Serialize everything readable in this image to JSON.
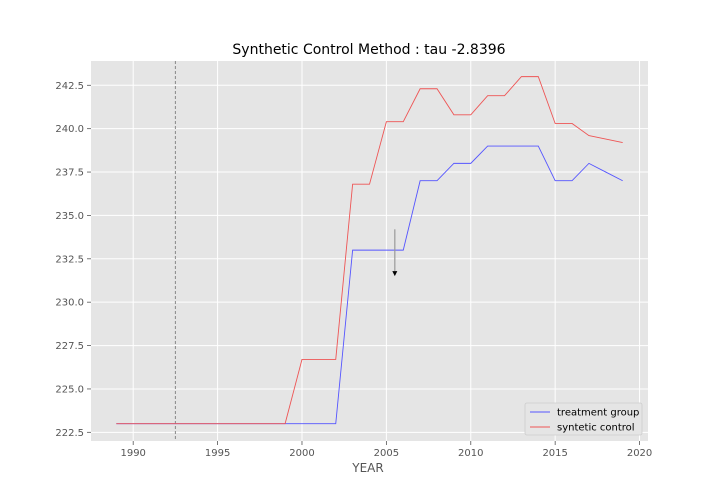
{
  "chart_data": {
    "type": "line",
    "title": "Synthetic Control Method : tau -2.8396",
    "xlabel": "YEAR",
    "ylabel": "",
    "xlim": [
      1987.5,
      2020.5
    ],
    "ylim": [
      222.0,
      243.9
    ],
    "x_ticks": [
      1990,
      1995,
      2000,
      2005,
      2010,
      2015,
      2020
    ],
    "y_ticks": [
      222.5,
      225.0,
      227.5,
      230.0,
      232.5,
      235.0,
      237.5,
      240.0,
      242.5
    ],
    "x_tick_labels": [
      "1990",
      "1995",
      "2000",
      "2005",
      "2010",
      "2015",
      "2020"
    ],
    "y_tick_labels": [
      "222.5",
      "225.0",
      "227.5",
      "230.0",
      "232.5",
      "235.0",
      "237.5",
      "240.0",
      "242.5"
    ],
    "grid": true,
    "legend_position": "bottom-right",
    "colors": {
      "background": "#e5e5e5",
      "grid": "#ffffff",
      "treatment": "#5555ff",
      "synthetic": "#ee5555",
      "vline": "#888888",
      "arrow": "#000000"
    },
    "series": [
      {
        "name": "treatment group",
        "x": [
          1989,
          1990,
          1991,
          1992,
          1993,
          1994,
          1995,
          1996,
          1997,
          1998,
          1999,
          2000,
          2001,
          2002,
          2003,
          2004,
          2005,
          2006,
          2007,
          2008,
          2009,
          2010,
          2011,
          2012,
          2013,
          2014,
          2015,
          2016,
          2017,
          2018,
          2019
        ],
        "values": [
          223,
          223,
          223,
          223,
          223,
          223,
          223,
          223,
          223,
          223,
          223,
          223,
          223,
          223,
          233,
          233,
          233,
          233,
          237,
          237,
          238,
          238,
          239,
          239,
          239,
          239,
          237,
          237,
          238,
          237.5,
          237
        ]
      },
      {
        "name": "syntetic control",
        "x": [
          1989,
          1990,
          1991,
          1992,
          1993,
          1994,
          1995,
          1996,
          1997,
          1998,
          1999,
          2000,
          2001,
          2002,
          2003,
          2004,
          2005,
          2006,
          2007,
          2008,
          2009,
          2010,
          2011,
          2012,
          2013,
          2014,
          2015,
          2016,
          2017,
          2018,
          2019
        ],
        "values": [
          223,
          223,
          223,
          223,
          223,
          223,
          223,
          223,
          223,
          223,
          223,
          226.7,
          226.7,
          226.7,
          236.8,
          236.8,
          240.4,
          240.4,
          242.3,
          242.3,
          240.8,
          240.8,
          241.9,
          241.9,
          243,
          243,
          240.3,
          240.3,
          239.6,
          239.4,
          239.2
        ]
      }
    ],
    "vline": {
      "x": 1992.5
    },
    "arrow": {
      "x": 2005.5,
      "y_start": 234.2,
      "y_end": 231.5
    }
  }
}
